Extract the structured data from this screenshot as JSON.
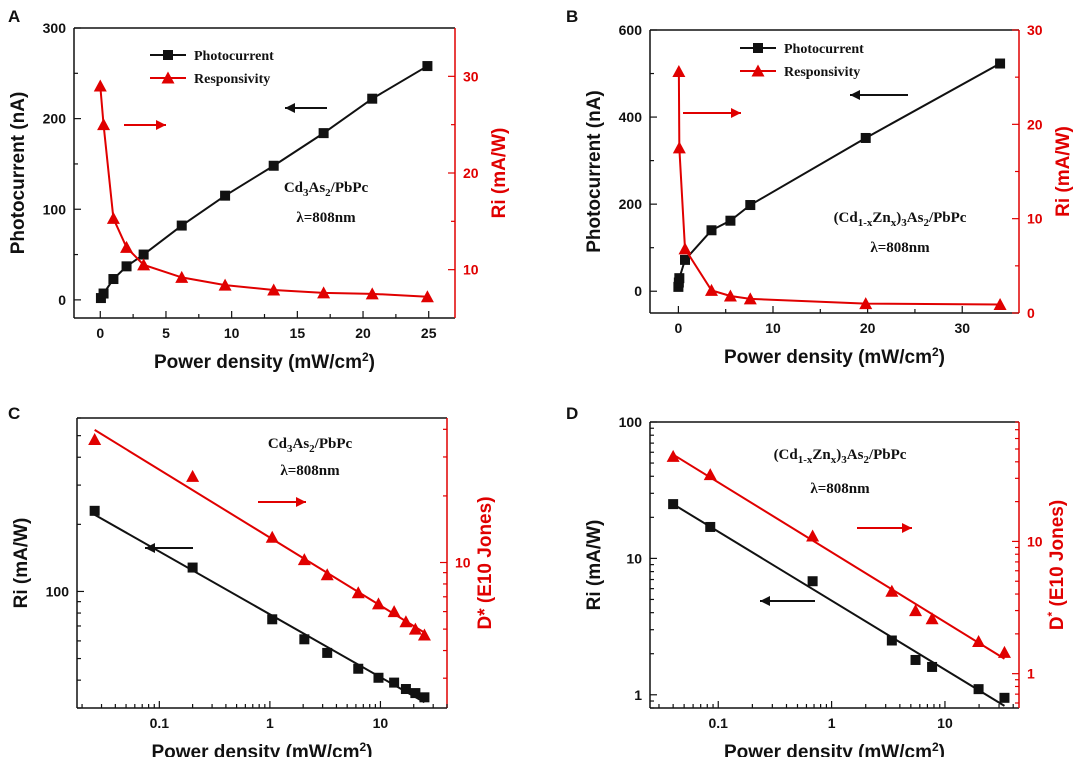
{
  "figure": {
    "colors": {
      "black": "#111111",
      "red": "#e00000"
    }
  },
  "chart_data": [
    {
      "panel": "A",
      "type": "line",
      "xscale": "linear",
      "xlabel": "Power density (mW/cm",
      "xlabel_sup": "2",
      "xlabel_end": ")",
      "xlim": [
        -2,
        27
      ],
      "xticks": [
        0,
        5,
        10,
        15,
        20,
        25
      ],
      "left": {
        "label": "Photocurrent (nA)",
        "ylim": [
          -20,
          300
        ],
        "ticks": [
          0,
          100,
          200,
          300
        ],
        "scale": "linear"
      },
      "right": {
        "label": "Ri (mA/W)",
        "ylim": [
          5,
          35
        ],
        "ticks": [
          10,
          20,
          30
        ],
        "scale": "linear"
      },
      "series": [
        {
          "name": "Photocurrent",
          "axis": "left",
          "marker": "square",
          "color": "#111111",
          "x": [
            0.05,
            0.25,
            1.0,
            2.0,
            3.3,
            6.2,
            9.5,
            13.2,
            17.0,
            20.7,
            24.9
          ],
          "y": [
            2,
            7,
            23,
            37,
            50,
            82,
            115,
            148,
            184,
            222,
            258
          ],
          "fit": "line"
        },
        {
          "name": "Responsivity",
          "axis": "right",
          "marker": "triangle",
          "color": "#e00000",
          "x": [
            0.0,
            0.25,
            1.0,
            2.0,
            3.3,
            6.2,
            9.5,
            13.2,
            17.0,
            20.7,
            24.9
          ],
          "y": [
            29.0,
            25.0,
            15.3,
            12.3,
            10.5,
            9.2,
            8.4,
            7.9,
            7.6,
            7.5,
            7.2
          ],
          "fit": "connect"
        }
      ],
      "annotation": {
        "main": "Cd",
        "sub1": "3",
        "mid": "As",
        "sub2": "2",
        "tail": "/PbPc",
        "wavelength": "λ=808nm"
      },
      "arrows": [
        {
          "dir": "left",
          "color": "#111111"
        },
        {
          "dir": "right",
          "color": "#e00000"
        }
      ]
    },
    {
      "panel": "B",
      "type": "line",
      "xscale": "linear",
      "xlabel": "Power density (mW/cm",
      "xlabel_sup": "2",
      "xlabel_end": ")",
      "xlim": [
        -3,
        36
      ],
      "xticks": [
        0,
        10,
        20,
        30
      ],
      "left": {
        "label": "Photocurrent (nA)",
        "ylim": [
          -50,
          600
        ],
        "ticks": [
          0,
          200,
          400,
          600
        ],
        "scale": "linear"
      },
      "right": {
        "label": "Ri (mA/W)",
        "ylim": [
          0,
          30
        ],
        "ticks": [
          0,
          10,
          20,
          30
        ],
        "scale": "linear"
      },
      "series": [
        {
          "name": "Photocurrent",
          "axis": "left",
          "marker": "square",
          "color": "#111111",
          "x": [
            0.0,
            0.05,
            0.1,
            0.7,
            3.5,
            5.5,
            7.6,
            19.8,
            34.0
          ],
          "y": [
            10,
            20,
            30,
            72,
            140,
            162,
            198,
            352,
            523
          ],
          "fit": "line"
        },
        {
          "name": "Responsivity",
          "axis": "right",
          "marker": "triangle",
          "color": "#e00000",
          "x": [
            0.05,
            0.1,
            0.7,
            3.5,
            5.5,
            7.6,
            19.8,
            34.0
          ],
          "y": [
            25.6,
            17.5,
            6.8,
            2.4,
            1.8,
            1.5,
            1.0,
            0.9
          ],
          "fit": "connect"
        }
      ],
      "annotation": {
        "main": "(Cd",
        "sub1": "1-x",
        "mid": "Zn",
        "sub2": "x",
        "tail": ")",
        "sub3": "3",
        "end": "As",
        "sub4": "2",
        "end2": "/PbPc",
        "wavelength": "λ=808nm"
      },
      "arrows": [
        {
          "dir": "left",
          "color": "#111111"
        },
        {
          "dir": "right",
          "color": "#e00000"
        }
      ]
    },
    {
      "panel": "C",
      "type": "scatter",
      "xscale": "log",
      "xlabel": "Power density (mW/cm",
      "xlabel_sup": "2",
      "xlabel_end": ")",
      "xlim": [
        0.018,
        40
      ],
      "xtick_values": [
        0.1,
        1,
        10
      ],
      "xtick_labels": [
        "0.1",
        "1",
        "10"
      ],
      "left": {
        "label": "Ri (mA/W)",
        "ylim": [
          30,
          600
        ],
        "scale": "log",
        "tick_values": [
          100
        ],
        "tick_labels": [
          "100"
        ]
      },
      "right": {
        "label": "D* (E10 Jones)",
        "ylim": [
          2.2,
          45
        ],
        "scale": "log",
        "tick_values": [
          10
        ],
        "tick_labels": [
          "10"
        ]
      },
      "series": [
        {
          "name": "Ri",
          "axis": "left",
          "marker": "square",
          "color": "#111111",
          "x": [
            0.026,
            0.2,
            1.05,
            2.05,
            3.3,
            6.3,
            9.6,
            13.3,
            17.0,
            20.7,
            25.0
          ],
          "y": [
            230,
            128,
            75,
            61,
            53,
            45,
            41,
            39,
            36.5,
            35,
            33.5
          ],
          "fit": "powerlaw"
        },
        {
          "name": "D*",
          "axis": "right",
          "marker": "triangle",
          "color": "#e00000",
          "x": [
            0.026,
            0.2,
            1.05,
            2.05,
            3.3,
            6.3,
            9.6,
            13.3,
            17.0,
            20.7,
            25.0
          ],
          "y": [
            36,
            24.5,
            13,
            10.3,
            8.8,
            7.3,
            6.5,
            6.0,
            5.4,
            5.0,
            4.7
          ],
          "fit": "powerlaw"
        }
      ],
      "annotation": {
        "main": "Cd",
        "sub1": "3",
        "mid": "As",
        "sub2": "2",
        "tail": "/PbPc",
        "wavelength": "λ=808nm"
      },
      "arrows": [
        {
          "dir": "left",
          "color": "#111111"
        },
        {
          "dir": "right",
          "color": "#e00000"
        }
      ]
    },
    {
      "panel": "D",
      "type": "scatter",
      "xscale": "log",
      "xlabel": "Power density (mW/cm",
      "xlabel_sup": "2",
      "xlabel_end": ")",
      "xlim": [
        0.025,
        45
      ],
      "xtick_values": [
        0.1,
        1,
        10
      ],
      "xtick_labels": [
        "0.1",
        "1",
        "10"
      ],
      "left": {
        "label": "Ri (mA/W)",
        "ylim": [
          0.8,
          100
        ],
        "scale": "log",
        "tick_values": [
          1,
          10,
          100
        ],
        "tick_labels": [
          "1",
          "10",
          "100"
        ]
      },
      "right": {
        "label": "D",
        "label_sup": "*",
        "label_end": " (E10 Jones)",
        "ylim": [
          0.55,
          80
        ],
        "scale": "log",
        "tick_values": [
          1,
          10
        ],
        "tick_labels": [
          "1",
          "10"
        ]
      },
      "series": [
        {
          "name": "Ri",
          "axis": "left",
          "marker": "square",
          "color": "#111111",
          "x": [
            0.04,
            0.085,
            0.68,
            3.4,
            5.5,
            7.7,
            19.8,
            33.5
          ],
          "y": [
            25,
            17,
            6.8,
            2.5,
            1.8,
            1.6,
            1.1,
            0.95
          ],
          "fit": "powerlaw"
        },
        {
          "name": "D*",
          "axis": "right",
          "marker": "triangle",
          "color": "#e00000",
          "x": [
            0.04,
            0.085,
            0.68,
            3.4,
            5.5,
            7.7,
            19.8,
            33.5
          ],
          "y": [
            44,
            32,
            11,
            4.2,
            3.0,
            2.6,
            1.75,
            1.45
          ],
          "fit": "powerlaw"
        }
      ],
      "annotation": {
        "main": "(Cd",
        "sub1": "1-x",
        "mid": "Zn",
        "sub2": "x",
        "tail": ")",
        "sub3": "3",
        "end": "As",
        "sub4": "2",
        "end2": "/PbPc",
        "wavelength": "λ=808nm"
      },
      "arrows": [
        {
          "dir": "left",
          "color": "#111111"
        },
        {
          "dir": "right",
          "color": "#e00000"
        }
      ]
    }
  ]
}
